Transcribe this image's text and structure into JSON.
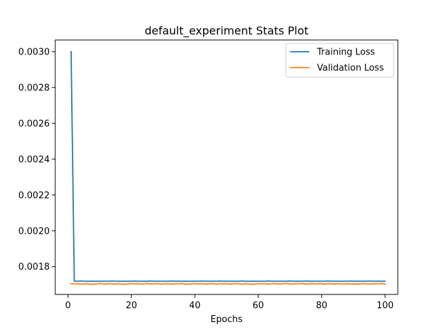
{
  "chart_data": {
    "type": "line",
    "title": "default_experiment Stats Plot",
    "xlabel": "Epochs",
    "ylabel": "",
    "xlim": [
      -4,
      104
    ],
    "ylim": [
      0.001645,
      0.003065
    ],
    "x_ticks": [
      0,
      20,
      40,
      60,
      80,
      100
    ],
    "y_ticks": [
      0.0018,
      0.002,
      0.0022,
      0.0024,
      0.0026,
      0.0028,
      0.003
    ],
    "y_tick_labels": [
      "0.0018",
      "0.0020",
      "0.0022",
      "0.0024",
      "0.0026",
      "0.0028",
      "0.0030"
    ],
    "x_tick_labels": [
      "0",
      "20",
      "40",
      "60",
      "80",
      "100"
    ],
    "grid": false,
    "legend_position": "top-right",
    "series": [
      {
        "name": "Training Loss",
        "color": "#1f77b4",
        "x_start": 1,
        "x_step": 1,
        "values": [
          0.003,
          0.001719,
          0.001719,
          0.00172,
          0.001719,
          0.001719,
          0.001719,
          0.001719,
          0.001719,
          0.001719,
          0.001719,
          0.001719,
          0.001719,
          0.00172,
          0.001719,
          0.001719,
          0.001719,
          0.001719,
          0.001719,
          0.001719,
          0.00172,
          0.001719,
          0.001719,
          0.001719,
          0.001719,
          0.00172,
          0.001719,
          0.001719,
          0.001719,
          0.001719,
          0.001719,
          0.001719,
          0.00172,
          0.001719,
          0.001719,
          0.001719,
          0.001719,
          0.001719,
          0.001719,
          0.001719,
          0.001719,
          0.00172,
          0.001719,
          0.001719,
          0.001719,
          0.001719,
          0.001719,
          0.00172,
          0.001719,
          0.001719,
          0.001719,
          0.001719,
          0.001719,
          0.001719,
          0.00172,
          0.001719,
          0.001719,
          0.001719,
          0.001719,
          0.001719,
          0.001719,
          0.001719,
          0.00172,
          0.001719,
          0.001719,
          0.001719,
          0.001719,
          0.001719,
          0.001719,
          0.00172,
          0.001719,
          0.001719,
          0.001719,
          0.001719,
          0.00172,
          0.001719,
          0.001719,
          0.001719,
          0.001719,
          0.001719,
          0.001719,
          0.00172,
          0.001719,
          0.001719,
          0.001719,
          0.001719,
          0.001719,
          0.001719,
          0.00172,
          0.001719,
          0.001719,
          0.001719,
          0.001719,
          0.001719,
          0.00172,
          0.001719,
          0.001719,
          0.001719,
          0.001719,
          0.001719
        ]
      },
      {
        "name": "Validation Loss",
        "color": "#ff7f0e",
        "x_start": 1,
        "x_step": 1,
        "values": [
          0.001705,
          0.001704,
          0.001705,
          0.001704,
          0.001703,
          0.001705,
          0.001702,
          0.001702,
          0.001703,
          0.001706,
          0.001704,
          0.001703,
          0.001705,
          0.001704,
          0.001703,
          0.001705,
          0.001703,
          0.001702,
          0.001704,
          0.001705,
          0.001704,
          0.001705,
          0.001703,
          0.001704,
          0.001706,
          0.001703,
          0.001704,
          0.001705,
          0.001704,
          0.001703,
          0.001705,
          0.001704,
          0.001703,
          0.001705,
          0.001704,
          0.001706,
          0.001702,
          0.001703,
          0.001704,
          0.001705,
          0.001703,
          0.001705,
          0.001704,
          0.001703,
          0.001705,
          0.001704,
          0.001703,
          0.001705,
          0.001704,
          0.001705,
          0.001703,
          0.001704,
          0.001705,
          0.001704,
          0.001703,
          0.001705,
          0.001704,
          0.001702,
          0.001703,
          0.001705,
          0.001704,
          0.001705,
          0.001703,
          0.001704,
          0.001705,
          0.001704,
          0.001703,
          0.001705,
          0.001706,
          0.001704,
          0.001703,
          0.001705,
          0.001704,
          0.001706,
          0.001703,
          0.001704,
          0.001705,
          0.001703,
          0.001705,
          0.001704,
          0.001703,
          0.001705,
          0.001704,
          0.001703,
          0.001705,
          0.001704,
          0.001703,
          0.001705,
          0.001704,
          0.001703,
          0.001704,
          0.001703,
          0.001705,
          0.001704,
          0.001703,
          0.001704,
          0.001705,
          0.001704,
          0.001706,
          0.001703
        ]
      }
    ]
  }
}
